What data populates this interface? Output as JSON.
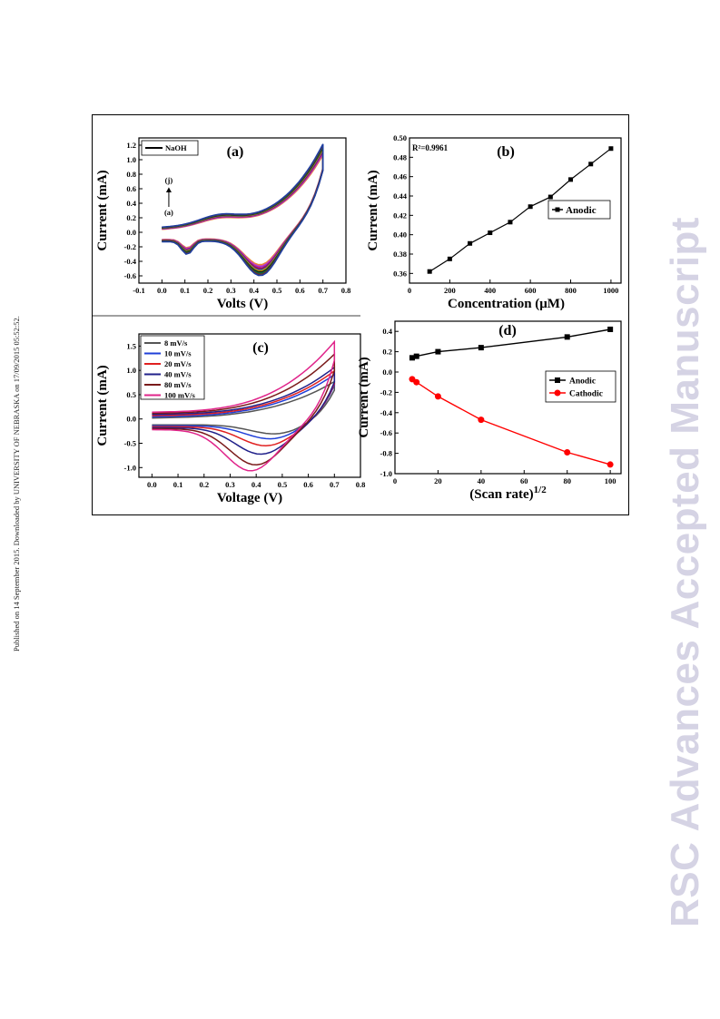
{
  "side_note": "Published on 14 September 2015. Downloaded by UNIVERSITY OF NEBRASKA on 17/09/2015 05:52:52.",
  "watermark": "RSC Advances Accepted Manuscript",
  "chart_data": [
    {
      "panel": "(a)",
      "type": "line",
      "xlabel": "Volts (V)",
      "ylabel": "Current (mA)",
      "xlim": [
        -0.1,
        0.8
      ],
      "ylim": [
        -0.7,
        1.3
      ],
      "xticks": [
        -0.1,
        0.0,
        0.1,
        0.2,
        0.3,
        0.4,
        0.5,
        0.6,
        0.7,
        0.8
      ],
      "yticks": [
        -0.6,
        -0.4,
        -0.2,
        0.0,
        0.2,
        0.4,
        0.6,
        0.8,
        1.0,
        1.2
      ],
      "legend": [
        "NaOH"
      ],
      "legend_position": "top-left",
      "annotations": [
        "(j)",
        "(a)"
      ],
      "curve_colors": [
        "#e88a2a",
        "#d84aa0",
        "#8a2be2",
        "#c8102e",
        "#2f2fb0",
        "#d4b000",
        "#1a1a1a",
        "#0a6e3a",
        "#6a2a2a",
        "#1f3fa0"
      ],
      "series": [
        {
          "name": "NaOH",
          "x": [
            0.0,
            0.1,
            0.2,
            0.3,
            0.4,
            0.5,
            0.6,
            0.7
          ],
          "values": [
            0.05,
            0.12,
            0.18,
            0.22,
            0.32,
            0.48,
            0.72,
            1.1
          ]
        }
      ]
    },
    {
      "panel": "(b)",
      "type": "line",
      "xlabel": "Concentration (μM)",
      "ylabel": "Current (mA)",
      "xlim": [
        0,
        1050
      ],
      "ylim": [
        0.35,
        0.5
      ],
      "xticks": [
        0,
        200,
        400,
        600,
        800,
        1000
      ],
      "yticks": [
        0.36,
        0.38,
        0.4,
        0.42,
        0.44,
        0.46,
        0.48,
        0.5
      ],
      "annotation": "R²=0.9961",
      "legend": [
        "Anodic"
      ],
      "legend_position": "right",
      "series": [
        {
          "name": "Anodic",
          "color": "#000000",
          "x": [
            100,
            200,
            300,
            400,
            500,
            600,
            700,
            800,
            900,
            1000
          ],
          "values": [
            0.362,
            0.375,
            0.391,
            0.402,
            0.413,
            0.429,
            0.439,
            0.457,
            0.473,
            0.489
          ]
        }
      ]
    },
    {
      "panel": "(c)",
      "type": "line",
      "xlabel": "Voltage (V)",
      "ylabel": "Current (mA)",
      "xlim": [
        -0.05,
        0.8
      ],
      "ylim": [
        -1.2,
        1.75
      ],
      "xticks": [
        0.0,
        0.1,
        0.2,
        0.3,
        0.4,
        0.5,
        0.6,
        0.7,
        0.8
      ],
      "yticks": [
        -1.0,
        -0.5,
        0.0,
        0.5,
        1.0,
        1.5
      ],
      "legend_position": "top-left",
      "series": [
        {
          "name": "8 mV/s",
          "color": "#555555",
          "x": [
            0.0,
            0.1,
            0.2,
            0.3,
            0.4,
            0.5,
            0.6,
            0.7
          ],
          "values": [
            0.0,
            0.02,
            0.05,
            0.08,
            0.12,
            0.2,
            0.4,
            0.8
          ]
        },
        {
          "name": "10 mV/s",
          "color": "#1f3fd8",
          "x": [
            0.0,
            0.1,
            0.2,
            0.3,
            0.4,
            0.5,
            0.6,
            0.7
          ],
          "values": [
            0.0,
            0.03,
            0.06,
            0.1,
            0.15,
            0.25,
            0.45,
            0.9
          ]
        },
        {
          "name": "20 mV/s",
          "color": "#e02020",
          "x": [
            0.0,
            0.1,
            0.2,
            0.3,
            0.4,
            0.5,
            0.6,
            0.7
          ],
          "values": [
            0.05,
            0.08,
            0.12,
            0.15,
            0.22,
            0.32,
            0.55,
            0.95
          ]
        },
        {
          "name": "40 mV/s",
          "color": "#20208a",
          "x": [
            0.0,
            0.1,
            0.2,
            0.3,
            0.4,
            0.5,
            0.6,
            0.7
          ],
          "values": [
            0.08,
            0.12,
            0.16,
            0.2,
            0.28,
            0.4,
            0.6,
            1.0
          ]
        },
        {
          "name": "80 mV/s",
          "color": "#7a1a1a",
          "x": [
            0.0,
            0.1,
            0.2,
            0.3,
            0.4,
            0.5,
            0.6,
            0.7
          ],
          "values": [
            0.12,
            0.18,
            0.22,
            0.28,
            0.36,
            0.55,
            0.8,
            1.25
          ]
        },
        {
          "name": "100 mV/s",
          "color": "#e0248a",
          "x": [
            0.0,
            0.1,
            0.2,
            0.3,
            0.4,
            0.5,
            0.6,
            0.7
          ],
          "values": [
            0.15,
            0.2,
            0.26,
            0.33,
            0.45,
            0.65,
            0.95,
            1.48
          ]
        }
      ]
    },
    {
      "panel": "(d)",
      "type": "line",
      "xlabel": "(Scan rate)",
      "xlabel_sup": "1/2",
      "ylabel": "Current (mA)",
      "xlim": [
        0,
        105
      ],
      "ylim": [
        -1.0,
        0.5
      ],
      "xticks": [
        0,
        20,
        40,
        60,
        80,
        100
      ],
      "yticks": [
        -1.0,
        -0.8,
        -0.6,
        -0.4,
        -0.2,
        0.0,
        0.2,
        0.4
      ],
      "legend_position": "right",
      "series": [
        {
          "name": "Anodic",
          "color": "#000000",
          "marker": "square",
          "x": [
            8,
            10,
            20,
            40,
            80,
            100
          ],
          "values": [
            0.14,
            0.155,
            0.2,
            0.24,
            0.345,
            0.42
          ]
        },
        {
          "name": "Cathodic",
          "color": "#ff0000",
          "marker": "circle",
          "x": [
            8,
            10,
            20,
            40,
            80,
            100
          ],
          "values": [
            -0.07,
            -0.1,
            -0.24,
            -0.47,
            -0.79,
            -0.91
          ]
        }
      ]
    }
  ]
}
